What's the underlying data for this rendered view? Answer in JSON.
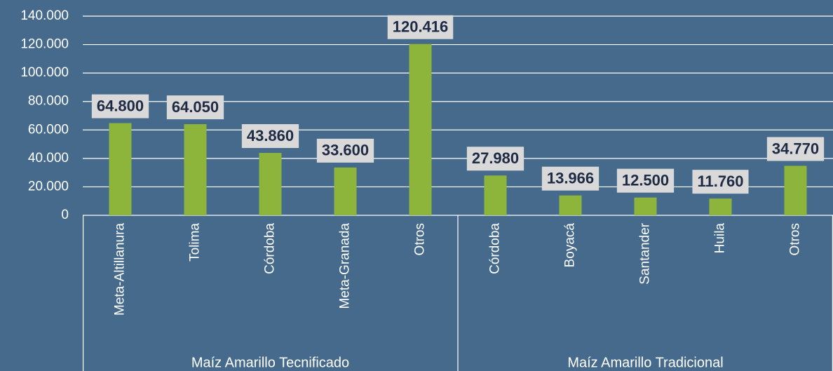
{
  "chart_data": {
    "type": "bar",
    "categories": [
      "Meta-Altillanura",
      "Tolima",
      "Córdoba",
      "Meta-Granada",
      "Otros",
      "Córdoba",
      "Boyacá",
      "Santander",
      "Huila",
      "Otros"
    ],
    "groups": [
      {
        "name": "Maíz Amarillo Tecnificado",
        "count": 5
      },
      {
        "name": "Maíz Amarillo Tradicional",
        "count": 5
      }
    ],
    "values": [
      64800,
      64050,
      43860,
      33600,
      120416,
      27980,
      13966,
      12500,
      11760,
      34770
    ],
    "value_labels": [
      "64.800",
      "64.050",
      "43.860",
      "33.600",
      "120.416",
      "27.980",
      "13.966",
      "12.500",
      "11.760",
      "34.770"
    ],
    "color": "#8db53c",
    "ylim": [
      0,
      140000
    ],
    "yticks": [
      0,
      {
        "value": 20000,
        "label": "20.000"
      },
      {
        "value": 40000,
        "label": "40.000"
      },
      {
        "value": 60000,
        "label": "60.000"
      },
      {
        "value": 80000,
        "label": "80.000"
      },
      {
        "value": 100000,
        "label": "100.000"
      },
      {
        "value": 120000,
        "label": "120.000"
      },
      {
        "value": 140000,
        "label": "140.000"
      }
    ],
    "grid": true
  }
}
